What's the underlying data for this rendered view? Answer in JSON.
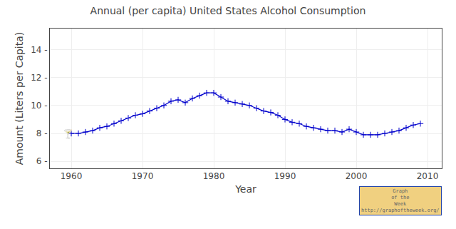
{
  "chart_data": {
    "type": "line",
    "title": "Annual (per capita) United States Alcohol Consumption",
    "xlabel": "Year",
    "ylabel": "Amount (Liters per Capita)",
    "x": [
      1960,
      1961,
      1962,
      1963,
      1964,
      1965,
      1966,
      1967,
      1968,
      1969,
      1970,
      1971,
      1972,
      1973,
      1974,
      1975,
      1976,
      1977,
      1978,
      1979,
      1980,
      1981,
      1982,
      1983,
      1984,
      1985,
      1986,
      1987,
      1988,
      1989,
      1990,
      1991,
      1992,
      1993,
      1994,
      1995,
      1996,
      1997,
      1998,
      1999,
      2000,
      2001,
      2002,
      2003,
      2004,
      2005,
      2006,
      2007,
      2008,
      2009
    ],
    "values": [
      8.0,
      8.0,
      8.1,
      8.2,
      8.4,
      8.5,
      8.7,
      8.9,
      9.1,
      9.3,
      9.4,
      9.6,
      9.8,
      10.0,
      10.3,
      10.4,
      10.2,
      10.5,
      10.7,
      10.9,
      10.9,
      10.6,
      10.3,
      10.2,
      10.1,
      10.0,
      9.8,
      9.6,
      9.5,
      9.3,
      9.0,
      8.8,
      8.7,
      8.5,
      8.4,
      8.3,
      8.2,
      8.2,
      8.1,
      8.3,
      8.1,
      7.9,
      7.9,
      7.9,
      8.0,
      8.1,
      8.2,
      8.4,
      8.6,
      8.7
    ],
    "color": "#0000cc",
    "marker": "+",
    "xlim": [
      1957,
      2012
    ],
    "xticks": [
      1960,
      1970,
      1980,
      1990,
      2000,
      2010
    ],
    "ylim": [
      5.5,
      15.5
    ],
    "yticks": [
      {
        "value": 6,
        "label": "6 -"
      },
      {
        "value": 8,
        "label": "8 -"
      },
      {
        "value": 10,
        "label": "10 -"
      },
      {
        "value": 12,
        "label": "12 -"
      },
      {
        "value": 14,
        "label": "14 -"
      }
    ],
    "grid": true,
    "annotations": [
      {
        "text": "🍸",
        "x": 1959.5,
        "y": 8.0
      },
      {
        "text": "Graph\nof the\nWeek\nhttp://graphoftheweek.org/"
      }
    ]
  }
}
